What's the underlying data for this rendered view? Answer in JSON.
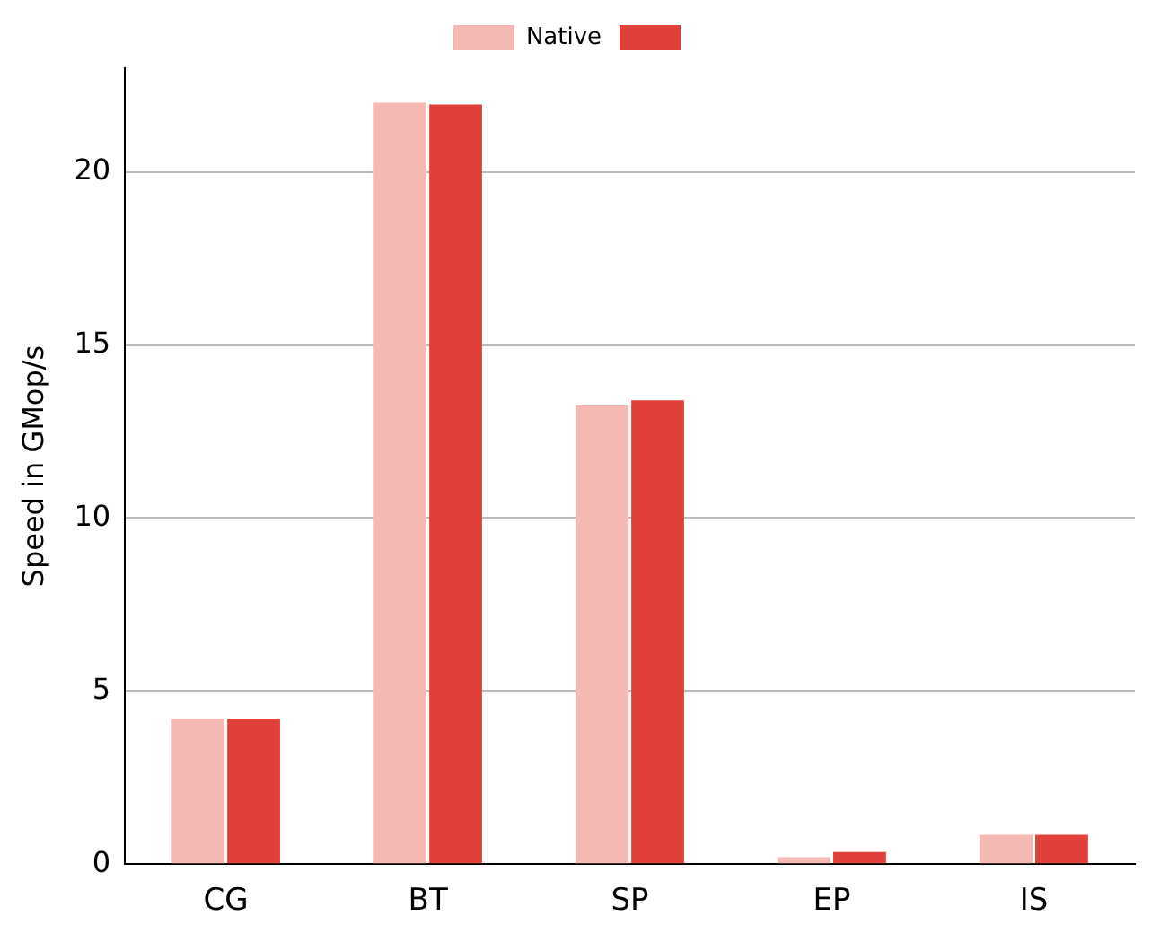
{
  "chart_data": {
    "type": "bar",
    "ylabel": "Speed in GMop/s",
    "categories": [
      "CG",
      "BT",
      "SP",
      "EP",
      "IS"
    ],
    "series": [
      {
        "name": "Native",
        "color": "#f4b9b2",
        "values": [
          4.2,
          22.0,
          13.25,
          0.2,
          0.85
        ]
      },
      {
        "color": "#e0403a",
        "values": [
          4.2,
          21.95,
          13.4,
          0.35,
          0.85
        ]
      }
    ],
    "ylim": [
      0,
      23
    ],
    "yticks": [
      0,
      5,
      10,
      15,
      20
    ],
    "grid": "y",
    "legend": "top"
  }
}
